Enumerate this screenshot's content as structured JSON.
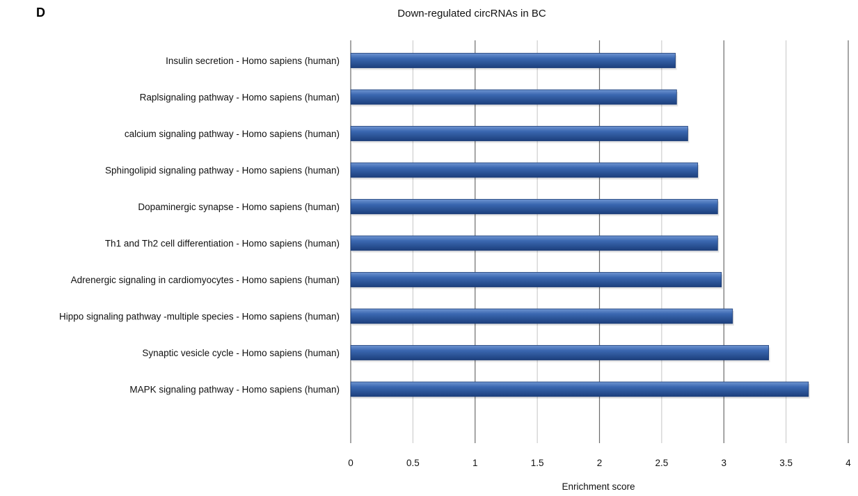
{
  "panel_label": "D",
  "chart_data": {
    "type": "bar",
    "orientation": "horizontal",
    "title": "Down-regulated circRNAs in BC",
    "xlabel": "Enrichment score",
    "ylabel": "",
    "xlim": [
      0,
      4
    ],
    "xticks": [
      "0",
      "0.5",
      "1",
      "1.5",
      "2",
      "2.5",
      "3",
      "3.5",
      "4"
    ],
    "grid": true,
    "bar_color": "#2f5fa6",
    "categories": [
      "Insulin secretion - Homo sapiens (human)",
      "Raplsignaling pathway - Homo sapiens (human)",
      "calcium signaling pathway - Homo sapiens (human)",
      "Sphingolipid signaling pathway - Homo sapiens (human)",
      "Dopaminergic synapse - Homo sapiens (human)",
      "Th1 and Th2 cell differentiation - Homo sapiens (human)",
      "Adrenergic signaling in cardiomyocytes - Homo sapiens (human)",
      "Hippo signaling pathway -multiple species - Homo sapiens (human)",
      "Synaptic vesicle cycle - Homo sapiens (human)",
      "MAPK signaling pathway - Homo sapiens (human)"
    ],
    "values": [
      2.61,
      2.62,
      2.71,
      2.79,
      2.95,
      2.95,
      2.98,
      3.07,
      3.36,
      3.68
    ]
  }
}
